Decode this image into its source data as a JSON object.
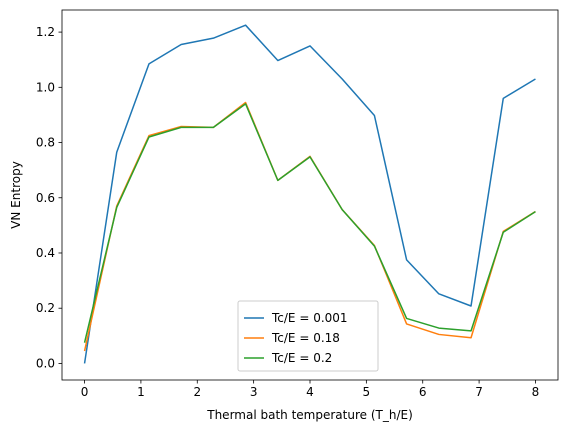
{
  "chart_data": {
    "type": "line",
    "title": "",
    "xlabel": "Thermal bath temperature (T_h/E)",
    "ylabel": "VN Entropy",
    "xlim": [
      -0.4,
      8.4
    ],
    "ylim": [
      -0.06,
      1.28
    ],
    "xticks": [
      "0",
      "1",
      "2",
      "3",
      "4",
      "5",
      "6",
      "7",
      "8"
    ],
    "yticks": [
      "0.0",
      "0.2",
      "0.4",
      "0.6",
      "0.8",
      "1.0",
      "1.2"
    ],
    "grid": false,
    "legend_position": "lower center",
    "x": [
      0,
      0.571,
      1.143,
      1.714,
      2.286,
      2.857,
      3.429,
      4.0,
      4.571,
      5.143,
      5.714,
      6.286,
      6.857,
      7.429,
      8.0
    ],
    "series": [
      {
        "name": "Tc/E = 0.001",
        "color": "#1f77b4",
        "values": [
          0.0,
          0.765,
          1.085,
          1.155,
          1.178,
          1.225,
          1.097,
          1.15,
          1.03,
          0.898,
          0.375,
          0.252,
          0.208,
          0.96,
          1.03
        ]
      },
      {
        "name": "Tc/E = 0.18",
        "color": "#ff7f0e",
        "values": [
          0.045,
          0.57,
          0.825,
          0.858,
          0.855,
          0.945,
          0.663,
          0.75,
          0.557,
          0.427,
          0.143,
          0.105,
          0.093,
          0.478,
          0.55
        ]
      },
      {
        "name": "Tc/E = 0.2",
        "color": "#2ca02c",
        "values": [
          0.075,
          0.565,
          0.82,
          0.855,
          0.855,
          0.94,
          0.663,
          0.748,
          0.557,
          0.425,
          0.163,
          0.128,
          0.118,
          0.475,
          0.55
        ]
      }
    ]
  }
}
